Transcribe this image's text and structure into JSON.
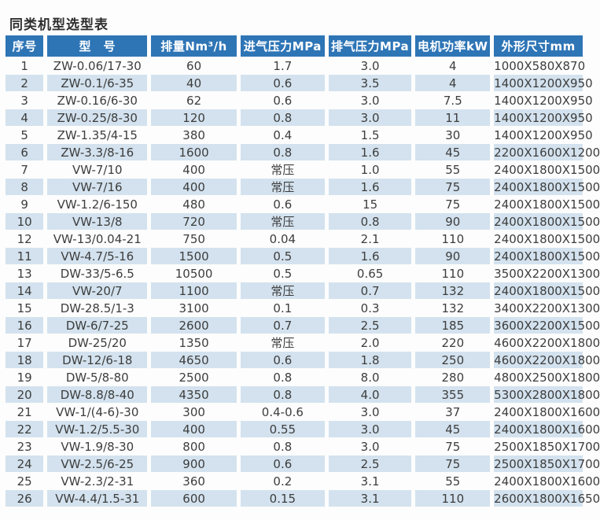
{
  "page": {
    "title": "同类机型选型表",
    "colors": {
      "header_bg": "#2e75b6",
      "header_text": "#ffffff",
      "stripe_bg": "#d3e2ee",
      "body_text": "#3d3d3d"
    }
  },
  "table": {
    "columns": [
      "序号",
      "型　号",
      "排量Nm³/h",
      "进气压力MPa",
      "排气压力MPa",
      "电机功率kW",
      "外形尺寸mm"
    ],
    "rows": [
      [
        "1",
        "ZW-0.06/17-30",
        "60",
        "1.7",
        "3.0",
        "4",
        "1000X580X870"
      ],
      [
        "2",
        "ZW-0.1/6-35",
        "40",
        "0.6",
        "3.5",
        "4",
        "1400X1200X950"
      ],
      [
        "3",
        "ZW-0.16/6-30",
        "62",
        "0.6",
        "3.0",
        "7.5",
        "1400X1200X950"
      ],
      [
        "4",
        "ZW-0.25/8-30",
        "120",
        "0.8",
        "3.0",
        "11",
        "1400X1200X950"
      ],
      [
        "5",
        "ZW-1.35/4-15",
        "380",
        "0.4",
        "1.5",
        "30",
        "1400X1200X950"
      ],
      [
        "6",
        "ZW-3.3/8-16",
        "1600",
        "0.8",
        "1.6",
        "45",
        "2200X1600X1200"
      ],
      [
        "7",
        "VW-7/10",
        "400",
        "常压",
        "1.0",
        "55",
        "2400X1800X1500"
      ],
      [
        "8",
        "VW-7/16",
        "400",
        "常压",
        "1.6",
        "75",
        "2400X1800X1500"
      ],
      [
        "9",
        "VW-1.2/6-150",
        "480",
        "0.6",
        "15",
        "75",
        "2400X1800X1500"
      ],
      [
        "10",
        "VW-13/8",
        "720",
        "常压",
        "0.8",
        "90",
        "2400X1800X1500"
      ],
      [
        "12",
        "VW-13/0.04-21",
        "750",
        "0.04",
        "2.1",
        "110",
        "2400X1800X1500"
      ],
      [
        "11",
        "VW-4.7/5-16",
        "1500",
        "0.5",
        "1.6",
        "90",
        "2400X1800X1500"
      ],
      [
        "13",
        "DW-33/5-6.5",
        "10500",
        "0.5",
        "0.65",
        "110",
        "3500X2200X1300"
      ],
      [
        "14",
        "VW-20/7",
        "1100",
        "常压",
        "0.7",
        "132",
        "2400X1800X1500"
      ],
      [
        "15",
        "DW-28.5/1-3",
        "3100",
        "0.1",
        "0.3",
        "132",
        "3400X2200X1300"
      ],
      [
        "16",
        "DW-6/7-25",
        "2600",
        "0.7",
        "2.5",
        "185",
        "3600X2200X1500"
      ],
      [
        "17",
        "DW-25/20",
        "1350",
        "常压",
        "2.0",
        "220",
        "4600X2200X1800"
      ],
      [
        "18",
        "DW-12/6-18",
        "4650",
        "0.6",
        "1.8",
        "250",
        "4600X2200X1800"
      ],
      [
        "19",
        "DW-5/8-80",
        "2500",
        "0.8",
        "8.0",
        "280",
        "4800X2500X1800"
      ],
      [
        "20",
        "DW-8.8/8-40",
        "4350",
        "0.8",
        "4.0",
        "355",
        "5300X2800X1800"
      ],
      [
        "21",
        "VW-1/(4-6)-30",
        "300",
        "0.4-0.6",
        "3.0",
        "37",
        "2400X1800X1600"
      ],
      [
        "22",
        "VW-1.2/5.5-30",
        "400",
        "0.55",
        "3.0",
        "45",
        "2400X1800X1600"
      ],
      [
        "23",
        "VW-1.9/8-30",
        "800",
        "0.8",
        "3.0",
        "75",
        "2500X1850X1700"
      ],
      [
        "24",
        "VW-2.5/6-25",
        "900",
        "0.6",
        "2.5",
        "75",
        "2500X1850X1700"
      ],
      [
        "25",
        "VW-2.3/2-31",
        "360",
        "0.2",
        "3.1",
        "55",
        "2400X1800X1600"
      ],
      [
        "26",
        "VW-4.4/1.5-31",
        "600",
        "0.15",
        "3.1",
        "110",
        "2600X1800X1650"
      ]
    ]
  }
}
